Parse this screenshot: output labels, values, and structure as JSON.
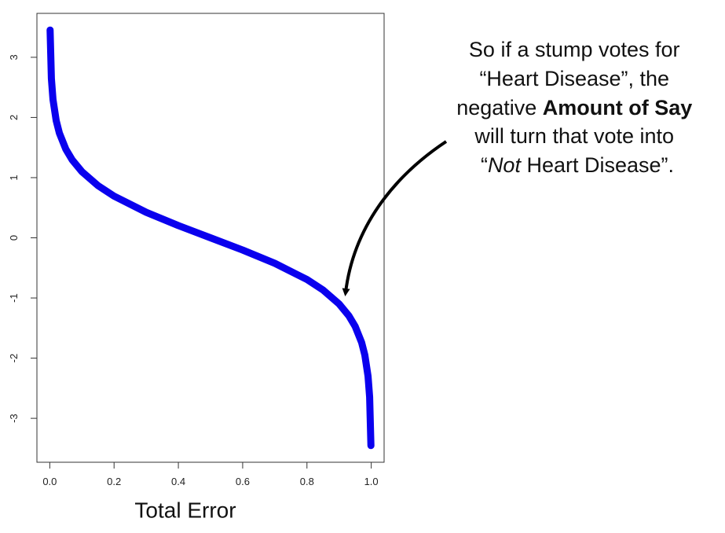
{
  "chart_data": {
    "type": "line",
    "x_label": "Total Error",
    "x": [
      0.001,
      0.005,
      0.01,
      0.02,
      0.03,
      0.05,
      0.07,
      0.1,
      0.15,
      0.2,
      0.3,
      0.4,
      0.5,
      0.6,
      0.7,
      0.8,
      0.85,
      0.9,
      0.93,
      0.95,
      0.97,
      0.98,
      0.99,
      0.995,
      0.999
    ],
    "series": [
      {
        "color": "#0a00ee",
        "values": [
          3.453,
          2.647,
          2.298,
          1.946,
          1.738,
          1.472,
          1.293,
          1.099,
          0.867,
          0.693,
          0.424,
          0.203,
          0,
          -0.203,
          -0.424,
          -0.693,
          -0.867,
          -1.099,
          -1.293,
          -1.472,
          -1.738,
          -1.946,
          -2.298,
          -2.647,
          -3.453
        ]
      }
    ],
    "xlim": [
      -0.04,
      1.04
    ],
    "ylim": [
      -3.73,
      3.73
    ],
    "xticks": [
      {
        "value": 0,
        "label": "0.0"
      },
      0.2,
      0.4,
      0.6,
      0.8,
      {
        "value": 1,
        "label": "1.0"
      }
    ],
    "yticks": [
      -3,
      -2,
      -1,
      0,
      1,
      2,
      3
    ],
    "annotation": [
      [
        "So if a stump votes for"
      ],
      [
        "“Heart Disease”, the"
      ],
      [
        "negative ",
        "Amount of Say"
      ],
      [
        "will turn that vote into"
      ],
      [
        "“",
        "Not",
        " Heart Disease”."
      ]
    ]
  }
}
